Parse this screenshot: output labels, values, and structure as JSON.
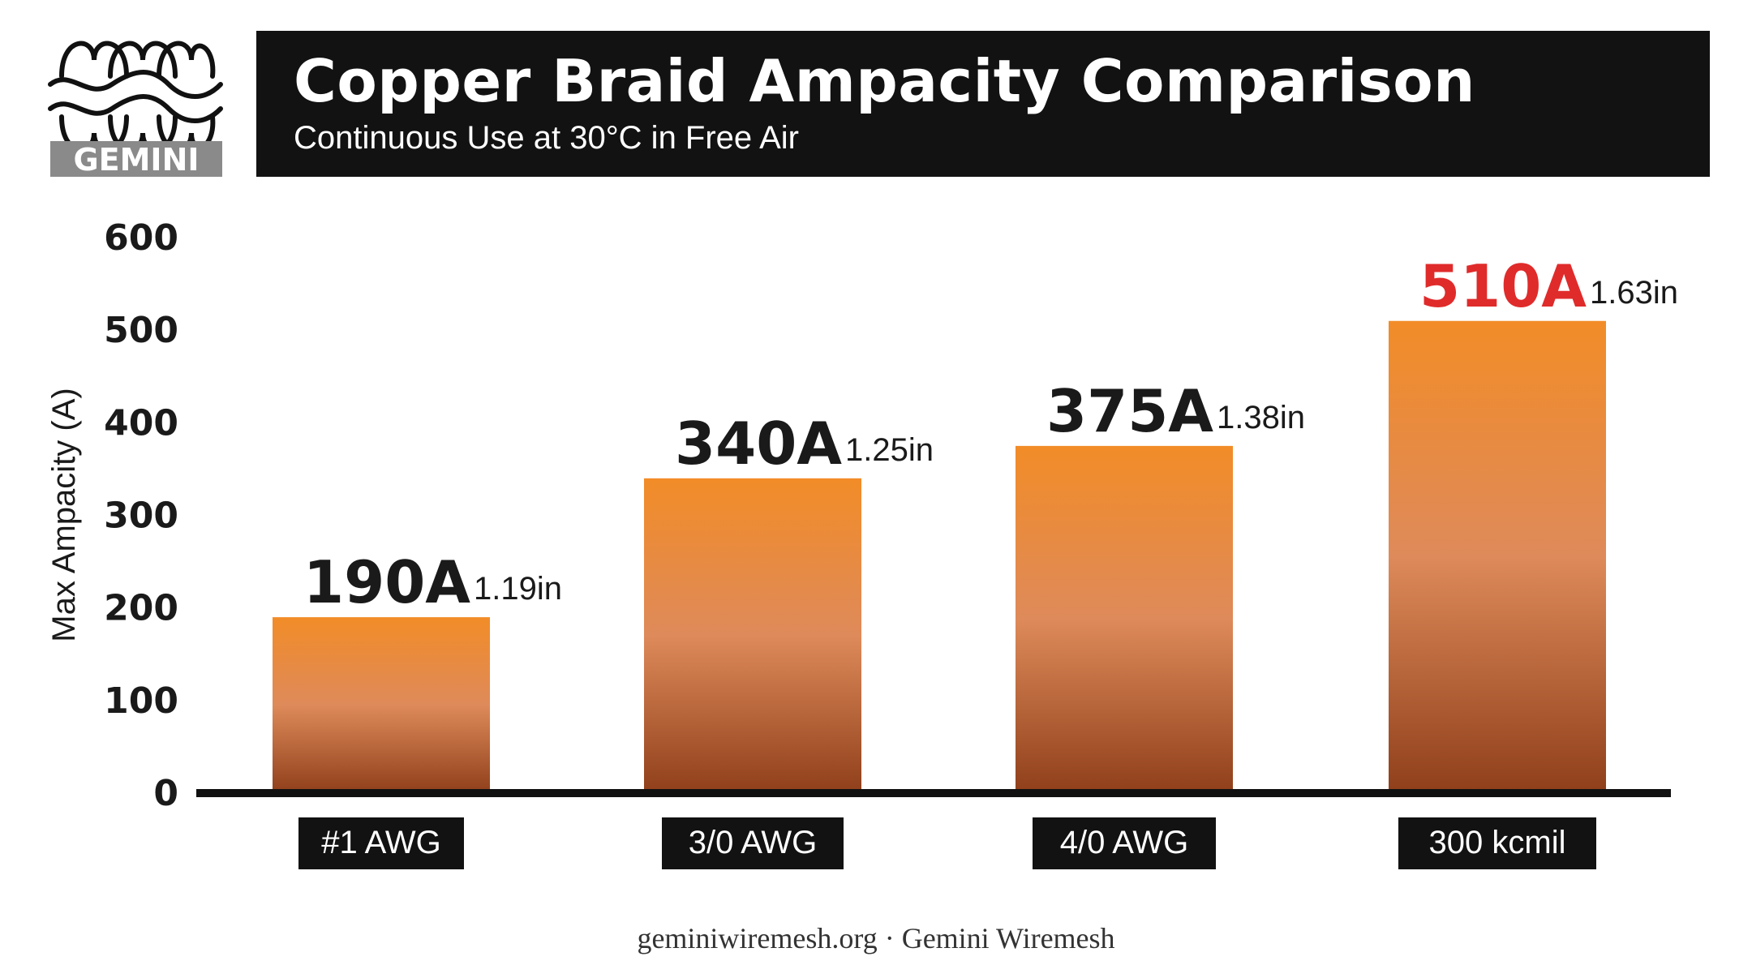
{
  "brand": {
    "logo_text": "GEMINI"
  },
  "header": {
    "title": "Copper Braid Ampacity Comparison",
    "subtitle": "Continuous Use at 30°C in Free Air"
  },
  "footer": {
    "text": "geminiwiremesh.org · Gemini Wiremesh"
  },
  "colors": {
    "bar_top": "#f28c28",
    "bar_mid": "#de8a5a",
    "bar_bottom": "#8f3f1a",
    "highlight": "#e02b2b",
    "label_dark": "#1a1a1a",
    "header_bg": "#121212"
  },
  "chart_data": {
    "type": "bar",
    "title": "Copper Braid Ampacity Comparison",
    "subtitle": "Continuous Use at 30°C in Free Air",
    "xlabel": "",
    "ylabel": "Max Ampacity (A)",
    "ylim": [
      0,
      600
    ],
    "yticks": [
      0,
      100,
      200,
      300,
      400,
      500,
      600
    ],
    "grid": false,
    "categories": [
      "#1 AWG",
      "3/0 AWG",
      "4/0 AWG",
      "300 kcmil"
    ],
    "values": [
      190,
      340,
      375,
      510
    ],
    "value_labels": [
      "190A",
      "340A",
      "375A",
      "510A"
    ],
    "diameter_labels": [
      "1.19in",
      "1.25in",
      "1.38in",
      "1.63in"
    ],
    "highlight_index": 3
  }
}
